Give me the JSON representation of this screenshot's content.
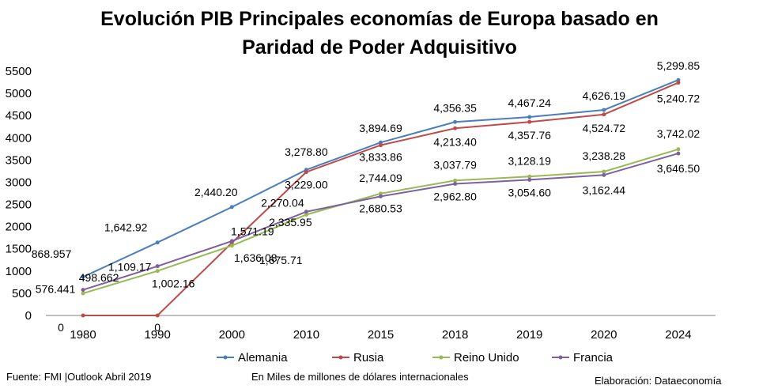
{
  "chart_data": {
    "type": "line",
    "title_line1": "Evolución PIB Principales economías de Europa basado en",
    "title_line2": "Paridad de Poder Adquisitivo",
    "categories": [
      "1980",
      "1990",
      "2000",
      "2010",
      "2015",
      "2018",
      "2019",
      "2020",
      "2024"
    ],
    "ylim": [
      0,
      5500
    ],
    "yticks": [
      0,
      500,
      1000,
      1500,
      2000,
      2500,
      3000,
      3500,
      4000,
      4500,
      5000,
      5500
    ],
    "grid": false,
    "legend_position": "bottom",
    "series": [
      {
        "name": "Alemania",
        "color": "#4a7ebb",
        "values": [
          868.957,
          1642.92,
          2440.2,
          3278.8,
          3894.69,
          4356.35,
          4467.24,
          4626.19,
          5299.85
        ],
        "labels": [
          "868.957",
          "1,642.92",
          "2,440.20",
          "3,278.80",
          "3,894.69",
          "4,356.35",
          "4,467.24",
          "4,626.19",
          "5,299.85"
        ]
      },
      {
        "name": "Rusia",
        "color": "#be4b48",
        "values": [
          0,
          0,
          1636.08,
          3229.0,
          3833.86,
          4213.4,
          4357.76,
          4524.72,
          5240.72
        ],
        "labels": [
          "0",
          "0",
          "1,636.08",
          "3,229.00",
          "3,833.86",
          "4,213.40",
          "4,357.76",
          "4,524.72",
          "5,240.72"
        ]
      },
      {
        "name": "Reino Unido",
        "color": "#98b954",
        "values": [
          498.662,
          1002.16,
          1571.19,
          2270.04,
          2744.09,
          3037.79,
          3128.19,
          3238.28,
          3742.02
        ],
        "labels": [
          "498.662",
          "1,002.16",
          "1,571.19",
          "2,270.04",
          "2,744.09",
          "3,037.79",
          "3,128.19",
          "3,238.28",
          "3,742.02"
        ]
      },
      {
        "name": "Francia",
        "color": "#7d60a0",
        "values": [
          576.441,
          1109.17,
          1675.71,
          2335.95,
          2680.53,
          2962.8,
          3054.6,
          3162.44,
          3646.5
        ],
        "labels": [
          "576.441",
          "1,109.17",
          "1,675.71",
          "2,335.95",
          "2,680.53",
          "2,962.80",
          "3,054.60",
          "3,162.44",
          "3,646.50"
        ]
      }
    ]
  },
  "footer": {
    "source": "Fuente: FMI |Outlook Abril 2019",
    "units": "En Miles de millones de dólares internacionales",
    "credit": "Elaboración: Dataeconomía"
  }
}
